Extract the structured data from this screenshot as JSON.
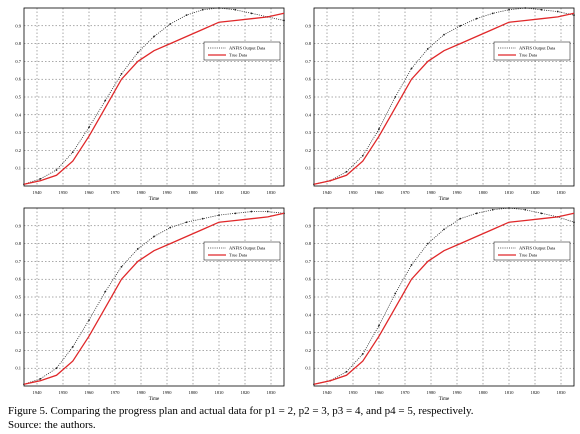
{
  "caption": {
    "line1": "Figure 5. Comparing the progress plan and actual data for p1 = 2, p2 = 3, p3 = 4, and p4 = 5, respectively.",
    "line2": "Source: the authors."
  },
  "colors": {
    "anfis": "#222222",
    "true": "#e0282a",
    "grid": "#555555",
    "axis": "#000000"
  },
  "chart_data": [
    {
      "type": "line",
      "panel": "p1 = 2",
      "xlabel": "Time",
      "xlim": [
        1934,
        1982
      ],
      "ylim": [
        0,
        1
      ],
      "xticks": [
        1940,
        1950,
        1960,
        1970,
        1980,
        1990,
        1800,
        1810,
        1820,
        1830
      ],
      "yticks": [
        0.1,
        0.2,
        0.3,
        0.4,
        0.5,
        0.6,
        0.7,
        0.8,
        0.9
      ],
      "grid": true,
      "legend_position": "top-right",
      "series": [
        {
          "name": "ANFIS Output Data",
          "style": "dotted-markers",
          "x": [
            1934,
            1937,
            1940,
            1943,
            1946,
            1949,
            1952,
            1955,
            1958,
            1961,
            1964,
            1967,
            1970,
            1973,
            1976,
            1979,
            1982
          ],
          "values": [
            0.01,
            0.04,
            0.09,
            0.19,
            0.33,
            0.48,
            0.63,
            0.75,
            0.84,
            0.91,
            0.96,
            0.99,
            1.0,
            0.99,
            0.97,
            0.95,
            0.93
          ]
        },
        {
          "name": "True Data",
          "style": "solid",
          "x": [
            1934,
            1937,
            1940,
            1943,
            1946,
            1949,
            1952,
            1955,
            1958,
            1961,
            1964,
            1967,
            1970,
            1973,
            1976,
            1979,
            1982
          ],
          "values": [
            0.01,
            0.03,
            0.06,
            0.14,
            0.28,
            0.44,
            0.6,
            0.7,
            0.76,
            0.8,
            0.84,
            0.88,
            0.92,
            0.93,
            0.94,
            0.95,
            0.97
          ]
        }
      ]
    },
    {
      "type": "line",
      "panel": "p2 = 3",
      "xlabel": "Time",
      "xlim": [
        1934,
        1982
      ],
      "ylim": [
        0,
        1
      ],
      "xticks": [
        1940,
        1950,
        1960,
        1970,
        1980,
        1990,
        1800,
        1810,
        1820,
        1830
      ],
      "yticks": [
        0.1,
        0.2,
        0.3,
        0.4,
        0.5,
        0.6,
        0.7,
        0.8,
        0.9
      ],
      "grid": true,
      "legend_position": "top-right",
      "series": [
        {
          "name": "ANFIS Output Data",
          "style": "dotted-markers",
          "x": [
            1934,
            1937,
            1940,
            1943,
            1946,
            1949,
            1952,
            1955,
            1958,
            1961,
            1964,
            1967,
            1970,
            1973,
            1976,
            1979,
            1982
          ],
          "values": [
            0.01,
            0.03,
            0.08,
            0.17,
            0.32,
            0.5,
            0.66,
            0.77,
            0.85,
            0.9,
            0.94,
            0.97,
            0.99,
            1.0,
            0.99,
            0.98,
            0.96
          ]
        },
        {
          "name": "True Data",
          "style": "solid",
          "x": [
            1934,
            1937,
            1940,
            1943,
            1946,
            1949,
            1952,
            1955,
            1958,
            1961,
            1964,
            1967,
            1970,
            1973,
            1976,
            1979,
            1982
          ],
          "values": [
            0.01,
            0.03,
            0.06,
            0.14,
            0.28,
            0.44,
            0.6,
            0.7,
            0.76,
            0.8,
            0.84,
            0.88,
            0.92,
            0.93,
            0.94,
            0.95,
            0.97
          ]
        }
      ]
    },
    {
      "type": "line",
      "panel": "p3 = 4",
      "xlabel": "Time",
      "xlim": [
        1934,
        1982
      ],
      "ylim": [
        0,
        1
      ],
      "xticks": [
        1940,
        1950,
        1960,
        1970,
        1980,
        1990,
        1800,
        1810,
        1820,
        1830
      ],
      "yticks": [
        0.1,
        0.2,
        0.3,
        0.4,
        0.5,
        0.6,
        0.7,
        0.8,
        0.9
      ],
      "grid": true,
      "legend_position": "top-right",
      "series": [
        {
          "name": "ANFIS Output Data",
          "style": "dotted-markers",
          "x": [
            1934,
            1937,
            1940,
            1943,
            1946,
            1949,
            1952,
            1955,
            1958,
            1961,
            1964,
            1967,
            1970,
            1973,
            1976,
            1979,
            1982
          ],
          "values": [
            0.01,
            0.04,
            0.1,
            0.22,
            0.37,
            0.53,
            0.67,
            0.77,
            0.84,
            0.89,
            0.92,
            0.94,
            0.96,
            0.97,
            0.98,
            0.98,
            0.97
          ]
        },
        {
          "name": "True Data",
          "style": "solid",
          "x": [
            1934,
            1937,
            1940,
            1943,
            1946,
            1949,
            1952,
            1955,
            1958,
            1961,
            1964,
            1967,
            1970,
            1973,
            1976,
            1979,
            1982
          ],
          "values": [
            0.01,
            0.03,
            0.06,
            0.14,
            0.28,
            0.44,
            0.6,
            0.7,
            0.76,
            0.8,
            0.84,
            0.88,
            0.92,
            0.93,
            0.94,
            0.95,
            0.97
          ]
        }
      ]
    },
    {
      "type": "line",
      "panel": "p4 = 5",
      "xlabel": "Time",
      "xlim": [
        1934,
        1982
      ],
      "ylim": [
        0,
        1
      ],
      "xticks": [
        1940,
        1950,
        1960,
        1970,
        1980,
        1990,
        1800,
        1810,
        1820,
        1830
      ],
      "yticks": [
        0.1,
        0.2,
        0.3,
        0.4,
        0.5,
        0.6,
        0.7,
        0.8,
        0.9
      ],
      "grid": true,
      "legend_position": "top-right",
      "series": [
        {
          "name": "ANFIS Output Data",
          "style": "dotted-markers",
          "x": [
            1934,
            1937,
            1940,
            1943,
            1946,
            1949,
            1952,
            1955,
            1958,
            1961,
            1964,
            1967,
            1970,
            1973,
            1976,
            1979,
            1982
          ],
          "values": [
            0.01,
            0.03,
            0.08,
            0.18,
            0.34,
            0.52,
            0.68,
            0.8,
            0.88,
            0.94,
            0.97,
            0.99,
            1.0,
            0.99,
            0.97,
            0.95,
            0.92
          ]
        },
        {
          "name": "True Data",
          "style": "solid",
          "x": [
            1934,
            1937,
            1940,
            1943,
            1946,
            1949,
            1952,
            1955,
            1958,
            1961,
            1964,
            1967,
            1970,
            1973,
            1976,
            1979,
            1982
          ],
          "values": [
            0.01,
            0.03,
            0.06,
            0.14,
            0.28,
            0.44,
            0.6,
            0.7,
            0.76,
            0.8,
            0.84,
            0.88,
            0.92,
            0.93,
            0.94,
            0.95,
            0.97
          ]
        }
      ]
    }
  ]
}
